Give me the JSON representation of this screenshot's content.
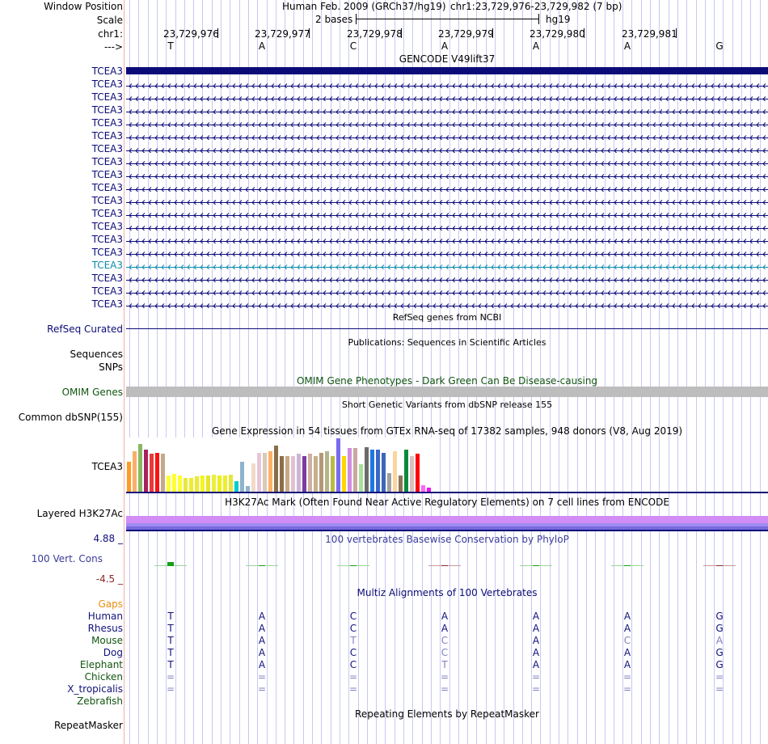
{
  "header": {
    "window_position_label": "Window Position",
    "scale_label": "Scale",
    "chrom_label": "chr1:",
    "strand_label": "--->",
    "assembly_text": "Human Feb. 2009 (GRCh37/hg19)",
    "position_text": "chr1:23,729,976-23,729,982 (7 bp)",
    "scale_text": "2 bases",
    "db_text": "hg19"
  },
  "ruler": {
    "coords": [
      "23,729,976",
      "23,729,977",
      "23,729,978",
      "23,729,979",
      "23,729,980",
      "23,729,981"
    ],
    "bases": [
      "T",
      "A",
      "C",
      "A",
      "A",
      "A",
      "G"
    ]
  },
  "gencode": {
    "title": "GENCODE V49lift37",
    "label": "TCEA3",
    "transcripts": [
      "TCEA3",
      "TCEA3",
      "TCEA3",
      "TCEA3",
      "TCEA3",
      "TCEA3",
      "TCEA3",
      "TCEA3",
      "TCEA3",
      "TCEA3",
      "TCEA3",
      "TCEA3",
      "TCEA3",
      "TCEA3",
      "TCEA3",
      "TCEA3",
      "TCEA3",
      "TCEA3"
    ],
    "colors": {
      "coding": "#0c0c78",
      "noncoding": "#0c8cac"
    }
  },
  "refseq": {
    "title": "RefSeq genes from NCBI",
    "label": "RefSeq Curated"
  },
  "publications": {
    "title": "Publications: Sequences in Scientific Articles",
    "label1": "Sequences",
    "label2": "SNPs"
  },
  "omim": {
    "title": "OMIM Gene Phenotypes - Dark Green Can Be Disease-causing",
    "label": "OMIM Genes",
    "color": "#11550f"
  },
  "dbsnp": {
    "title": "Short Genetic Variants from dbSNP release 155",
    "label": "Common dbSNP(155)"
  },
  "gtex": {
    "title": "Gene Expression in 54 tissues from GTEx RNA-seq of 17382 samples, 948 donors (V8, Aug 2019)",
    "label": "TCEA3",
    "levels": [
      0.55,
      0.75,
      0.88,
      0.78,
      0.7,
      0.72,
      0.7,
      0.3,
      0.33,
      0.3,
      0.26,
      0.25,
      0.28,
      0.3,
      0.3,
      0.32,
      0.3,
      0.3,
      0.32,
      0.2,
      0.55,
      0.1,
      0.52,
      0.72,
      0.72,
      0.75,
      0.85,
      0.65,
      0.65,
      0.65,
      0.7,
      0.65,
      0.7,
      0.65,
      0.72,
      0.75,
      0.65,
      0.98,
      0.65,
      0.8,
      0.8,
      0.5,
      0.82,
      0.78,
      0.78,
      0.72,
      0.35,
      0.75,
      0.3,
      0.78,
      0.65,
      0.7,
      0.12,
      0.08
    ],
    "colors": [
      "#ff9a23",
      "#fcaf67",
      "#89b860",
      "#a8215c",
      "#ea3a3a",
      "#f71414",
      "#c8a88a",
      "#ffff33",
      "#ffff33",
      "#ffff33",
      "#e8e83a",
      "#eded30",
      "#eaea33",
      "#f5f520",
      "#e5e530",
      "#eded40",
      "#eeee1a",
      "#eeee2a",
      "#e5e53d",
      "#00cccc",
      "#8fb3cc",
      "#8fb3cc",
      "#f2d9c9",
      "#e8c5d8",
      "#d9c9b8",
      "#ffb265",
      "#8b6e48",
      "#8b6e48",
      "#c9a886",
      "#e1c1d1",
      "#cdb5d6",
      "#7b3ba0",
      "#cdb0a0",
      "#c6b08b",
      "#b59978",
      "#b4b48c",
      "#bbbb44",
      "#7a6aee",
      "#ffd700",
      "#d28ce0",
      "#c9a8a0",
      "#a9df98",
      "#6b6b6b",
      "#1f78e0",
      "#3b67c8",
      "#3b69b8",
      "#a0a0a0",
      "#fdd49e",
      "#8b7355",
      "#0c8a3a",
      "#d9c0c0",
      "#ff0000",
      "#ff66ff",
      "#ee11ee"
    ]
  },
  "h3k27ac": {
    "title": "H3K27Ac Mark (Often Found Near Active Regulatory Elements) on 7 cell lines from ENCODE",
    "label": "Layered H3K27Ac"
  },
  "phylop": {
    "title": "100 vertebrates Basewise Conservation by PhyloP",
    "label": "100 Vert. Cons",
    "max_label": "4.88 _",
    "min_label": "-4.5 _",
    "scores": [
      0.35,
      0.0,
      0.05,
      -0.03,
      0.08,
      0.0,
      -0.08
    ]
  },
  "multiz": {
    "title": "Multiz Alignments of 100 Vertebrates",
    "gaps_label": "Gaps",
    "species": [
      {
        "name": "Human",
        "color": "#11117a",
        "bases": [
          "T",
          "A",
          "C",
          "A",
          "A",
          "A",
          "G"
        ],
        "faded": [
          false,
          false,
          false,
          false,
          false,
          false,
          false
        ]
      },
      {
        "name": "Rhesus",
        "color": "#11117a",
        "bases": [
          "T",
          "A",
          "C",
          "A",
          "A",
          "A",
          "G"
        ],
        "faded": [
          false,
          false,
          false,
          false,
          false,
          false,
          false
        ]
      },
      {
        "name": "Mouse",
        "color": "#11550f",
        "bases": [
          "T",
          "A",
          "T",
          "C",
          "A",
          "C",
          "A"
        ],
        "faded": [
          false,
          false,
          true,
          true,
          false,
          true,
          true
        ]
      },
      {
        "name": "Dog",
        "color": "#11117a",
        "bases": [
          "T",
          "A",
          "C",
          "C",
          "A",
          "A",
          "G"
        ],
        "faded": [
          false,
          false,
          false,
          true,
          false,
          false,
          false
        ]
      },
      {
        "name": "Elephant",
        "color": "#11550f",
        "bases": [
          "T",
          "A",
          "C",
          "T",
          "A",
          "A",
          "G"
        ],
        "faded": [
          false,
          false,
          false,
          true,
          false,
          false,
          false
        ]
      },
      {
        "name": "Chicken",
        "color": "#11550f",
        "bases": [
          "=",
          "=",
          "=",
          "=",
          "=",
          "=",
          "="
        ],
        "faded": [
          true,
          true,
          true,
          true,
          true,
          true,
          true
        ]
      },
      {
        "name": "X_tropicalis",
        "color": "#11117a",
        "bases": [
          "=",
          "=",
          "=",
          "=",
          "=",
          "=",
          "="
        ],
        "faded": [
          true,
          true,
          true,
          true,
          true,
          true,
          true
        ]
      },
      {
        "name": "Zebrafish",
        "color": "#11550f",
        "bases": [
          "",
          "",
          "",
          "",
          "",
          "",
          ""
        ],
        "faded": [
          false,
          false,
          false,
          false,
          false,
          false,
          false
        ]
      }
    ]
  },
  "repeatmasker": {
    "title": "Repeating Elements by RepeatMasker",
    "label": "RepeatMasker"
  }
}
